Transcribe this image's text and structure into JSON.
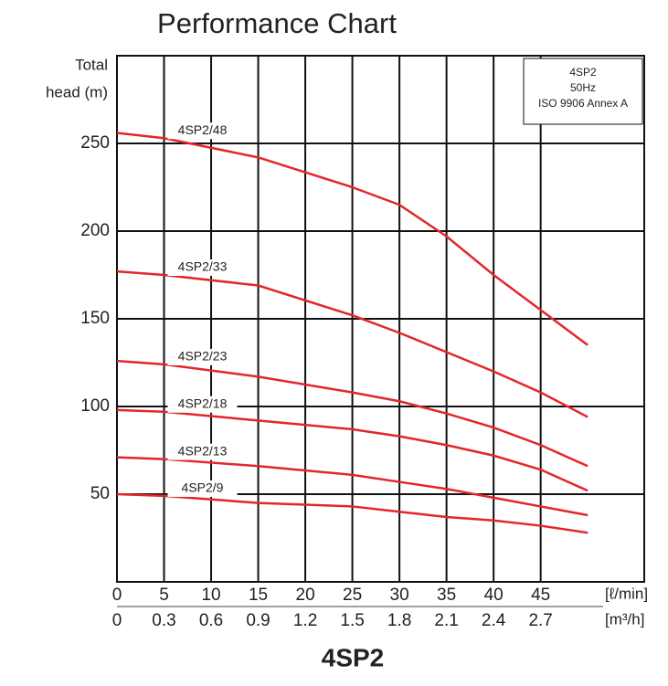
{
  "chart_data": {
    "type": "line",
    "title": "Performance Chart",
    "subtitle": "4SP2",
    "ylabel": [
      "Total",
      "head (m)"
    ],
    "xlabel": "[ℓ/min]",
    "x2label": "[m³/h]",
    "annotation": [
      "4SP2",
      "50Hz",
      "ISO 9906 Annex A"
    ],
    "x": [
      0,
      5,
      15,
      25,
      30,
      35,
      40,
      45,
      50
    ],
    "series": [
      {
        "name": "4SP2/48",
        "color": "#e3262b",
        "values": [
          256,
          253,
          242,
          225,
          215,
          197,
          175,
          155,
          135
        ]
      },
      {
        "name": "4SP2/33",
        "color": "#e3262b",
        "values": [
          177,
          175,
          169,
          152,
          142,
          131,
          120,
          108,
          94
        ]
      },
      {
        "name": "4SP2/23",
        "color": "#e3262b",
        "values": [
          126,
          124,
          117,
          108,
          103,
          96,
          88,
          78,
          66
        ]
      },
      {
        "name": "4SP2/18",
        "color": "#e3262b",
        "values": [
          98,
          97,
          92,
          87,
          83,
          78,
          72,
          64,
          52
        ]
      },
      {
        "name": "4SP2/13",
        "color": "#e3262b",
        "values": [
          71,
          70,
          66,
          61,
          57,
          53,
          48,
          43,
          38
        ]
      },
      {
        "name": "4SP2/9",
        "color": "#e3262b",
        "values": [
          50,
          49,
          45,
          43,
          40,
          37,
          35,
          32,
          28
        ]
      }
    ],
    "xlim": [
      0,
      56
    ],
    "xticks": [
      0,
      5,
      10,
      15,
      20,
      25,
      30,
      35,
      40,
      45
    ],
    "x2lim": [
      0,
      3.36
    ],
    "x2ticks": [
      0,
      0.3,
      0.6,
      0.9,
      1.2,
      1.5,
      1.8,
      2.1,
      2.4,
      2.7
    ],
    "ylim": [
      0,
      300
    ],
    "yticks": [
      50,
      100,
      150,
      200,
      250
    ],
    "grid": true
  }
}
